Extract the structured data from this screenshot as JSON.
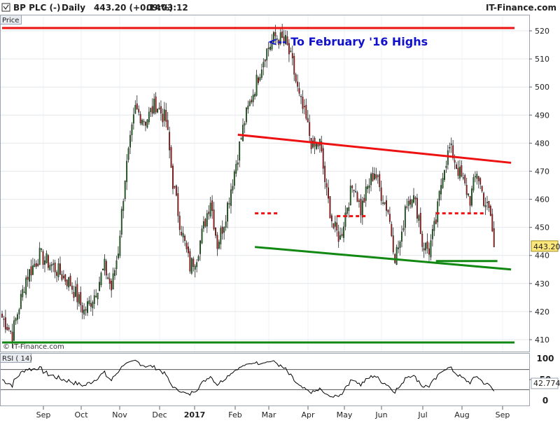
{
  "header": {
    "symbol": "BP PLC (-)",
    "period": "Daily",
    "last": "443.20 (+0.14%)",
    "time": "09:03:12",
    "brand": "IT-Finance.com"
  },
  "price_panel_label": "Price",
  "watermark": "© IT-Finance.com",
  "annotation": "<-- To February '16 Highs",
  "last_price_tag": "443.20",
  "rsi": {
    "label": "RSI ( 14)",
    "last": "42.774",
    "ticks": [
      "100",
      "50",
      "0"
    ],
    "upper": 70,
    "lower": 30,
    "ylim": [
      0,
      100
    ]
  },
  "colors": {
    "up": "#1a7a1a",
    "down": "#cc1111",
    "resistance": "#ee1111",
    "support": "#118811",
    "annotation": "#1111cc",
    "rsi_line": "#000000",
    "rsi_fill": "#b07ab8",
    "last_tag": "#ffe87a"
  },
  "chart_data": [
    {
      "type": "candlestick",
      "ylim": [
        406,
        525
      ],
      "yticks": [
        410,
        420,
        430,
        440,
        450,
        460,
        470,
        480,
        490,
        500,
        510,
        520
      ],
      "xticks": [
        "Sep",
        "Oct",
        "Nov",
        "Dec",
        "2017",
        "Feb",
        "Mar",
        "Apr",
        "May",
        "Jun",
        "Jul",
        "Aug",
        "Sep"
      ],
      "anchors": [
        [
          0,
          418
        ],
        [
          6,
          412
        ],
        [
          14,
          432
        ],
        [
          22,
          440
        ],
        [
          30,
          436
        ],
        [
          40,
          430
        ],
        [
          48,
          420
        ],
        [
          54,
          426
        ],
        [
          60,
          436
        ],
        [
          64,
          428
        ],
        [
          68,
          442
        ],
        [
          72,
          468
        ],
        [
          78,
          492
        ],
        [
          84,
          488
        ],
        [
          90,
          494
        ],
        [
          96,
          488
        ],
        [
          100,
          466
        ],
        [
          104,
          452
        ],
        [
          110,
          436
        ],
        [
          114,
          440
        ],
        [
          118,
          450
        ],
        [
          122,
          460
        ],
        [
          126,
          444
        ],
        [
          130,
          452
        ],
        [
          136,
          470
        ],
        [
          142,
          488
        ],
        [
          148,
          500
        ],
        [
          154,
          512
        ],
        [
          160,
          518
        ],
        [
          166,
          516
        ],
        [
          170,
          508
        ],
        [
          174,
          496
        ],
        [
          178,
          488
        ],
        [
          182,
          478
        ],
        [
          186,
          480
        ],
        [
          190,
          462
        ],
        [
          194,
          450
        ],
        [
          198,
          446
        ],
        [
          202,
          458
        ],
        [
          206,
          466
        ],
        [
          210,
          456
        ],
        [
          214,
          464
        ],
        [
          218,
          470
        ],
        [
          222,
          462
        ],
        [
          226,
          456
        ],
        [
          230,
          440
        ],
        [
          234,
          446
        ],
        [
          236,
          458
        ],
        [
          240,
          462
        ],
        [
          244,
          454
        ],
        [
          246,
          444
        ],
        [
          250,
          442
        ],
        [
          254,
          452
        ],
        [
          258,
          470
        ],
        [
          262,
          478
        ],
        [
          264,
          476
        ],
        [
          266,
          472
        ],
        [
          270,
          466
        ],
        [
          274,
          460
        ],
        [
          278,
          470
        ],
        [
          282,
          460
        ],
        [
          286,
          454
        ],
        [
          288,
          443
        ]
      ],
      "resistance_top": {
        "value": 521,
        "from": 0,
        "to": 300
      },
      "support_bottom": {
        "value": 409,
        "from": 0,
        "to": 300
      },
      "channel_top": {
        "from": [
          138,
          483
        ],
        "to": [
          298,
          473
        ]
      },
      "channel_bottom": {
        "from": [
          148,
          443
        ],
        "to": [
          298,
          435
        ]
      },
      "support_short": {
        "value": 438,
        "from": [
          254,
          290
        ]
      },
      "dashed_levels": [
        {
          "value": 455,
          "from": [
            148,
            162
          ]
        },
        {
          "value": 454,
          "from": [
            196,
            214
          ]
        },
        {
          "value": 455,
          "from": [
            254,
            282
          ]
        }
      ]
    }
  ]
}
